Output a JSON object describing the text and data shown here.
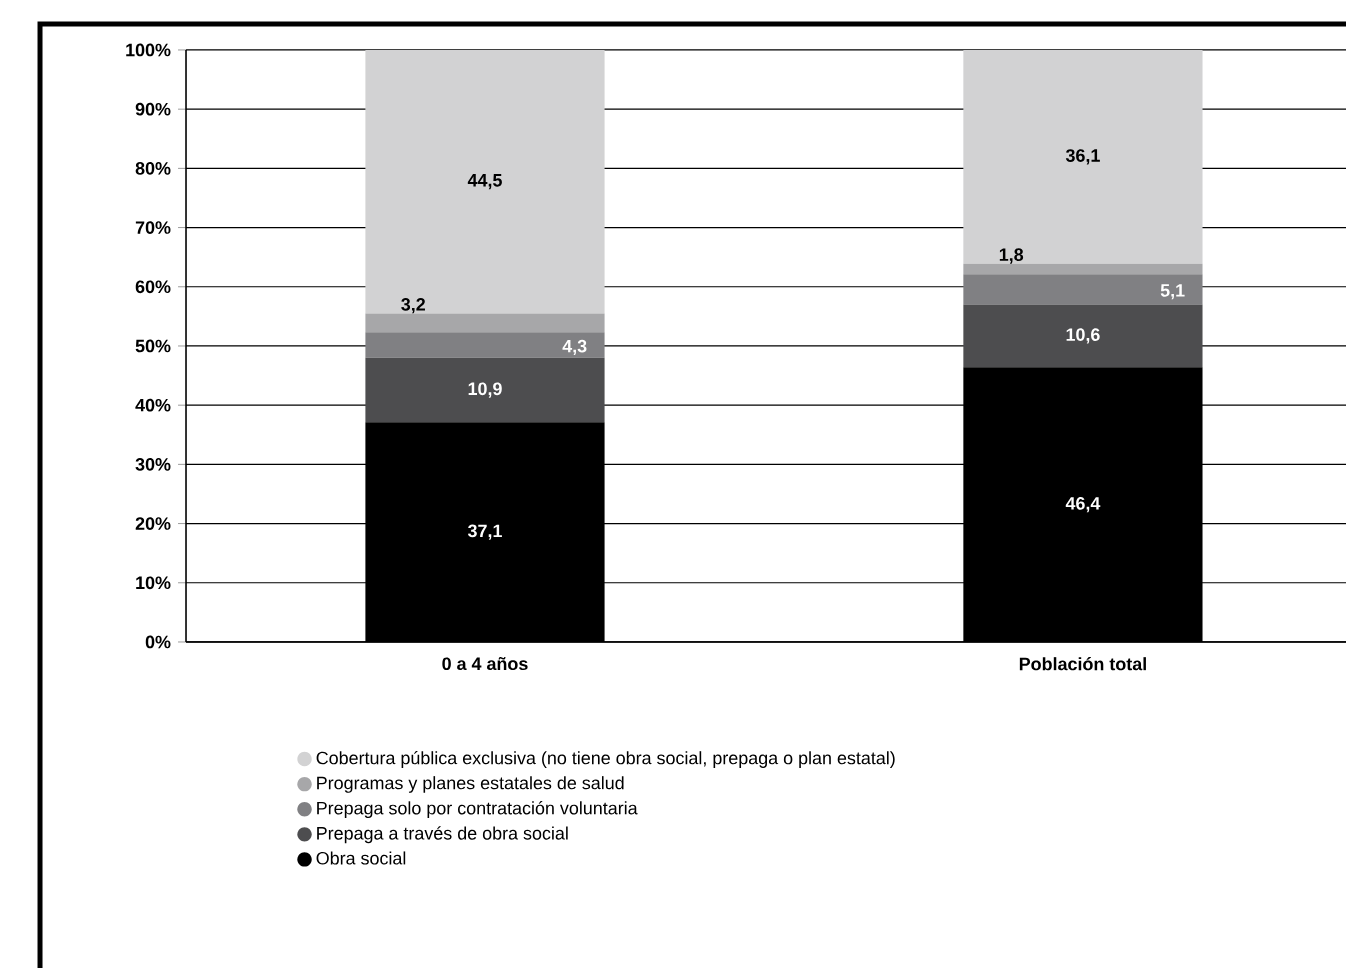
{
  "chart_data": {
    "type": "bar",
    "stacked": true,
    "categories": [
      "0 a 4 años",
      "Población total"
    ],
    "series": [
      {
        "name": "Obra social",
        "color": "#000000",
        "values": [
          37.1,
          46.4
        ],
        "value_labels": [
          "37,1",
          "46,4"
        ]
      },
      {
        "name": "Prepaga a través de obra social",
        "color": "#4d4d4f",
        "values": [
          10.9,
          10.6
        ],
        "value_labels": [
          "10,9",
          "10,6"
        ]
      },
      {
        "name": "Prepaga solo por contratación voluntaria",
        "color": "#808083",
        "values": [
          4.3,
          5.1
        ],
        "value_labels": [
          "4,3",
          "5,1"
        ]
      },
      {
        "name": "Programas y planes estatales de salud",
        "color": "#a7a7a9",
        "values": [
          3.2,
          1.8
        ],
        "value_labels": [
          "3,2",
          "1,8"
        ]
      },
      {
        "name": "Cobertura pública exclusiva (no tiene obra social, prepaga o plan estatal)",
        "color": "#d2d2d3",
        "values": [
          44.5,
          36.1
        ],
        "value_labels": [
          "44,5",
          "36,1"
        ]
      }
    ],
    "ylim": [
      0,
      100
    ],
    "yticks": [
      {
        "value": 0,
        "label": "0%"
      },
      {
        "value": 10,
        "label": "10%"
      },
      {
        "value": 20,
        "label": "20%"
      },
      {
        "value": 30,
        "label": "30%"
      },
      {
        "value": 40,
        "label": "40%"
      },
      {
        "value": 50,
        "label": "50%"
      },
      {
        "value": 60,
        "label": "60%"
      },
      {
        "value": 70,
        "label": "70%"
      },
      {
        "value": 80,
        "label": "80%"
      },
      {
        "value": 90,
        "label": "90%"
      },
      {
        "value": 100,
        "label": "100%"
      }
    ],
    "grid": "y",
    "legend": "bottom"
  }
}
